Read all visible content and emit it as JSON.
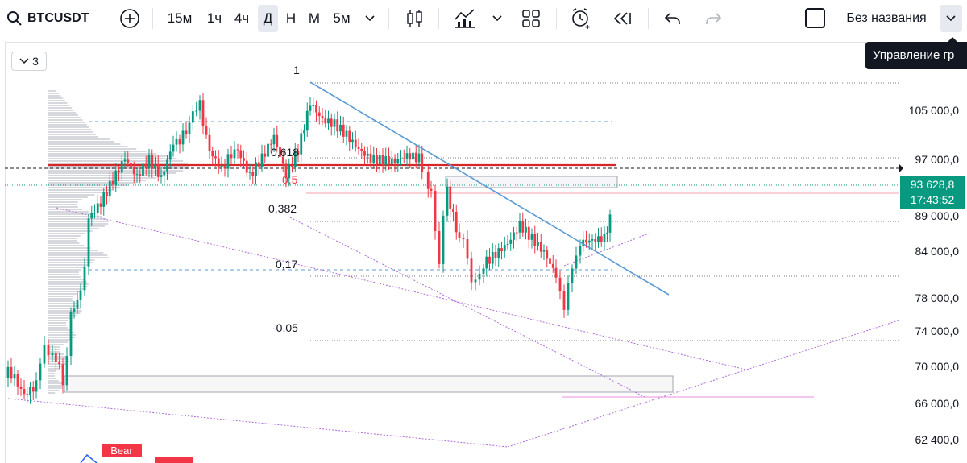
{
  "toolbar": {
    "symbol": "BTCUSDT",
    "search_icon": "search-icon",
    "add_icon": "plus-circle-icon",
    "intervals": [
      "15м",
      "1ч",
      "4ч",
      "Д",
      "Н",
      "М",
      "5м"
    ],
    "active_interval": "Д",
    "layout_name": "Без названия",
    "tooltip": "Управление гр"
  },
  "legend": {
    "collapse_count": "3"
  },
  "price_axis": {
    "labels": [
      "105 000,0",
      "97 000,0",
      "89 000,0",
      "84 000,0",
      "78 000,0",
      "74 000,0",
      "70 000,0",
      "66 000,0",
      "62 400,0"
    ],
    "last_price": "93 628,8",
    "countdown": "17:43:52",
    "last_price_color": "#089981"
  },
  "fib_levels": [
    "1",
    "0,618",
    "0,5",
    "0,382",
    "0,17",
    "-0,05"
  ],
  "bear_label": "Bear",
  "colors": {
    "up": "#089981",
    "down": "#f23645",
    "trendline": "#5b9bd5",
    "fib_line": "#787b86",
    "purple": "#b36ad8",
    "red_level": "#d62728"
  }
}
